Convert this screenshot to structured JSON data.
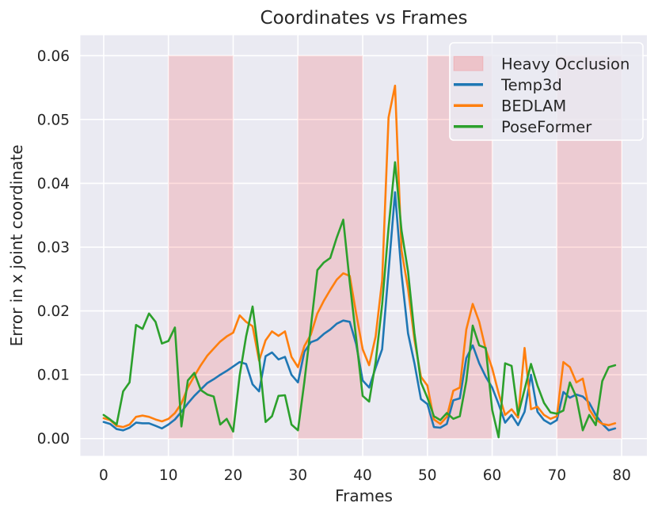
{
  "chart_data": {
    "type": "line",
    "title": "Coordinates vs Frames",
    "xlabel": "Frames",
    "ylabel": "Error in x joint coordinate",
    "x_frames": {
      "start": 0,
      "end": 79,
      "step": 1
    },
    "xlim": [
      -3.6,
      83.9
    ],
    "ylim": [
      -0.0027,
      0.0632
    ],
    "xticks": [
      0,
      10,
      20,
      30,
      40,
      50,
      60,
      70,
      80
    ],
    "yticks": [
      0,
      0.01,
      0.02,
      0.03,
      0.04,
      0.05,
      0.06
    ],
    "grid": true,
    "background_color": "#eaeaf2",
    "grid_color": "#ffffff",
    "text_color": "#262626",
    "occlusion_bands": [
      [
        10,
        20
      ],
      [
        30,
        40
      ],
      [
        50,
        60
      ],
      [
        70,
        80
      ]
    ],
    "occlusion_band_y_extent": [
      0,
      0.06
    ],
    "occlusion_color": "#ff0000",
    "occlusion_alpha": 0.13,
    "series": [
      {
        "name": "Temp3d",
        "color": "#1f77b4",
        "values": [
          0.0026,
          0.0023,
          0.0015,
          0.0013,
          0.0017,
          0.0025,
          0.0024,
          0.0024,
          0.002,
          0.0016,
          0.0022,
          0.003,
          0.0042,
          0.0055,
          0.0067,
          0.0077,
          0.0087,
          0.0093,
          0.01,
          0.0106,
          0.0113,
          0.012,
          0.0117,
          0.0085,
          0.0074,
          0.0129,
          0.0135,
          0.0124,
          0.0128,
          0.01,
          0.0088,
          0.0136,
          0.0151,
          0.0155,
          0.0164,
          0.0171,
          0.018,
          0.0185,
          0.0183,
          0.0148,
          0.0091,
          0.008,
          0.0111,
          0.014,
          0.0262,
          0.0386,
          0.0258,
          0.0165,
          0.0118,
          0.0062,
          0.0054,
          0.0018,
          0.0017,
          0.0023,
          0.006,
          0.0063,
          0.0126,
          0.0146,
          0.0118,
          0.0097,
          0.008,
          0.0054,
          0.0025,
          0.0037,
          0.0021,
          0.0042,
          0.01,
          0.0042,
          0.0029,
          0.0023,
          0.0029,
          0.0073,
          0.0064,
          0.0069,
          0.0066,
          0.0056,
          0.0037,
          0.0023,
          0.0013,
          0.0016
        ]
      },
      {
        "name": "BEDLAM",
        "color": "#ff7f0e",
        "values": [
          0.0032,
          0.0029,
          0.002,
          0.0018,
          0.0022,
          0.0034,
          0.0036,
          0.0034,
          0.003,
          0.0027,
          0.0031,
          0.004,
          0.0055,
          0.008,
          0.0098,
          0.0115,
          0.013,
          0.0141,
          0.0152,
          0.016,
          0.0166,
          0.0193,
          0.0183,
          0.0176,
          0.0122,
          0.0154,
          0.0168,
          0.0161,
          0.0168,
          0.0128,
          0.0112,
          0.0145,
          0.0163,
          0.0196,
          0.0216,
          0.0233,
          0.0249,
          0.0259,
          0.0255,
          0.0196,
          0.014,
          0.0115,
          0.016,
          0.0248,
          0.0503,
          0.0553,
          0.0295,
          0.0235,
          0.0155,
          0.0097,
          0.0083,
          0.003,
          0.0023,
          0.0034,
          0.0075,
          0.008,
          0.0171,
          0.0211,
          0.0183,
          0.014,
          0.011,
          0.0071,
          0.0037,
          0.0046,
          0.0033,
          0.0142,
          0.0046,
          0.005,
          0.0037,
          0.0031,
          0.0035,
          0.012,
          0.0112,
          0.0088,
          0.0094,
          0.0046,
          0.003,
          0.0023,
          0.0021,
          0.0024
        ]
      },
      {
        "name": "PoseFormer",
        "color": "#2ca02c",
        "values": [
          0.0037,
          0.003,
          0.0022,
          0.0074,
          0.0088,
          0.0178,
          0.0172,
          0.0196,
          0.0183,
          0.0149,
          0.0153,
          0.0174,
          0.0019,
          0.0091,
          0.0103,
          0.0076,
          0.0069,
          0.0066,
          0.0022,
          0.0031,
          0.0011,
          0.0099,
          0.016,
          0.0207,
          0.0128,
          0.0026,
          0.0035,
          0.0067,
          0.0068,
          0.0022,
          0.0013,
          0.0089,
          0.0175,
          0.0264,
          0.0276,
          0.0283,
          0.0315,
          0.0343,
          0.0245,
          0.0157,
          0.0067,
          0.0058,
          0.012,
          0.021,
          0.033,
          0.0433,
          0.0326,
          0.0262,
          0.0165,
          0.0088,
          0.0064,
          0.0035,
          0.0029,
          0.004,
          0.0031,
          0.0035,
          0.009,
          0.0177,
          0.0146,
          0.0142,
          0.0045,
          0.0002,
          0.0118,
          0.0114,
          0.0037,
          0.0077,
          0.0117,
          0.0083,
          0.0056,
          0.0041,
          0.0039,
          0.0044,
          0.0088,
          0.0065,
          0.0013,
          0.0037,
          0.0021,
          0.009,
          0.0112,
          0.0115
        ]
      }
    ],
    "legend": {
      "position": "upper right",
      "entries": [
        {
          "label": "Heavy Occlusion",
          "type": "patch",
          "color": "#ff0000",
          "alpha": 0.15
        },
        {
          "label": "Temp3d",
          "type": "line",
          "color": "#1f77b4"
        },
        {
          "label": "BEDLAM",
          "type": "line",
          "color": "#ff7f0e"
        },
        {
          "label": "PoseFormer",
          "type": "line",
          "color": "#2ca02c"
        }
      ]
    }
  }
}
